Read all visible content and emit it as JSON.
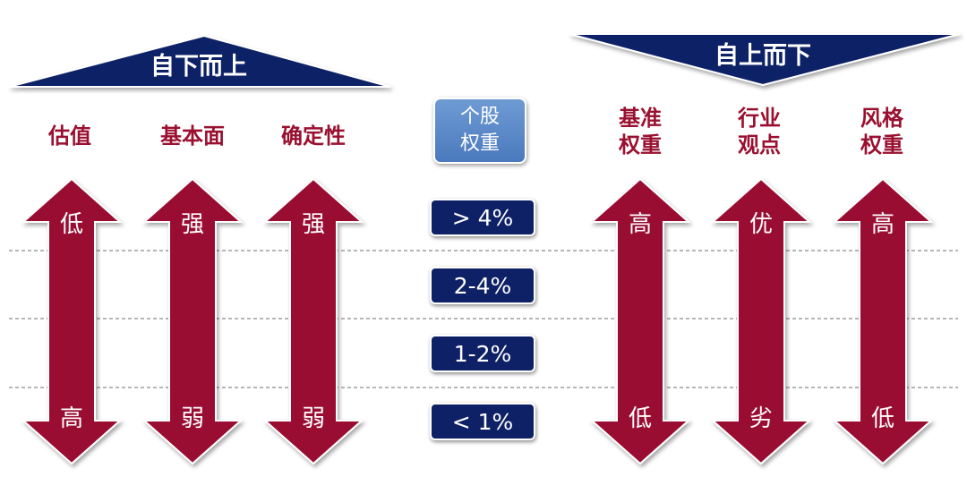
{
  "bottom_up": {
    "title": "自下而上",
    "columns": [
      {
        "label": "估值",
        "top": "低",
        "bottom": "高"
      },
      {
        "label": "基本面",
        "top": "强",
        "bottom": "弱"
      },
      {
        "label": "确定性",
        "top": "强",
        "bottom": "弱"
      }
    ]
  },
  "center": {
    "header": "个股\n权重",
    "weights": [
      "> 4%",
      "2-4%",
      "1-2%",
      "< 1%"
    ]
  },
  "top_down": {
    "title": "自上而下",
    "columns": [
      {
        "label": "基准\n权重",
        "top": "高",
        "bottom": "低"
      },
      {
        "label": "行业\n观点",
        "top": "优",
        "bottom": "劣"
      },
      {
        "label": "风格\n权重",
        "top": "高",
        "bottom": "低"
      }
    ]
  },
  "colors": {
    "arrow": "#9a1030",
    "banner": "#0f2166",
    "weight_box": "#0f2166",
    "header_box": "#5b8ac9",
    "label": "#9a1030"
  }
}
